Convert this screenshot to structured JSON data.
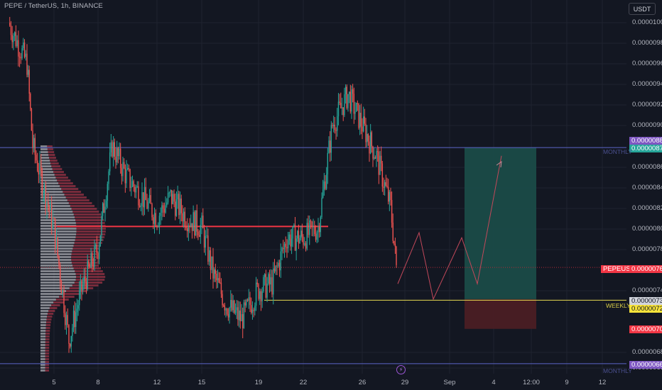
{
  "header": {
    "symbol_title": "PEPE / TetherUS, 1h, BINANCE"
  },
  "toolbar": {
    "currency_label": "USDT"
  },
  "colors": {
    "background": "#131722",
    "up": "#26a69a",
    "down": "#ef5350",
    "red_level": "#f23645",
    "monthly": "#5b65c9",
    "weekly": "#e6d94f",
    "profit": "#1a4b48",
    "loss": "#4a1e24",
    "projection": "#c2485a"
  },
  "price_axis": {
    "ticks": [
      "0.00001000",
      "0.00000980",
      "0.00000960",
      "0.00000940",
      "0.00000920",
      "0.00000900",
      "0.00000860",
      "0.00000840",
      "0.00000820",
      "0.00000800",
      "0.00000780",
      "0.00000740",
      "0.00000680",
      "0.00000660"
    ]
  },
  "time_axis": {
    "ticks": [
      "5",
      "8",
      "12",
      "15",
      "19",
      "22",
      "26",
      "29",
      "Sep",
      "4",
      "12:00",
      "9",
      "12"
    ]
  },
  "badges": {
    "monthly_high": "0.00000880",
    "monthly_level": "0.00000878",
    "current_symbol": "PEPEUSDT",
    "current_price": "0.00000761",
    "weekly_high": "0.00000730",
    "weekly_level": "0.00000729",
    "stop_price": "0.00000701",
    "monthly_low": "0.00000667"
  },
  "line_labels": {
    "monthly_top": "MONTHLY",
    "weekly": "WEEKLY",
    "monthly_bottom": "MONTHLY"
  },
  "chart_data": {
    "type": "candlestick",
    "title": "PEPE / TetherUS, 1h, BINANCE",
    "y_scale": "linear",
    "ylim": [
      6.55e-06,
      1.01e-05
    ],
    "x_axis_ticks": [
      "5",
      "8",
      "12",
      "15",
      "19",
      "22",
      "26",
      "29",
      "Sep",
      "4",
      "12:00",
      "9",
      "12"
    ],
    "grid": true,
    "series_anchors": {
      "description_free_points": true,
      "points": [
        {
          "x": "3",
          "close": 1e-05
        },
        {
          "x": "4",
          "close": 9.6e-06
        },
        {
          "x": "4",
          "close": 8.8e-06
        },
        {
          "x": "5",
          "close": 8e-06
        },
        {
          "x": "6",
          "close": 6.9e-06
        },
        {
          "x": "7",
          "close": 7.4e-06
        },
        {
          "x": "8",
          "close": 7.8e-06
        },
        {
          "x": "9",
          "close": 8.8e-06
        },
        {
          "x": "10",
          "close": 8.5e-06
        },
        {
          "x": "11",
          "close": 8.3e-06
        },
        {
          "x": "12",
          "close": 8.1e-06
        },
        {
          "x": "13",
          "close": 8.3e-06
        },
        {
          "x": "14",
          "close": 8.1e-06
        },
        {
          "x": "15",
          "close": 8e-06
        },
        {
          "x": "16",
          "close": 7.55e-06
        },
        {
          "x": "17",
          "close": 7.25e-06
        },
        {
          "x": "18",
          "close": 7.1e-06
        },
        {
          "x": "19",
          "close": 7.4e-06
        },
        {
          "x": "20",
          "close": 7.45e-06
        },
        {
          "x": "21",
          "close": 7.9e-06
        },
        {
          "x": "22",
          "close": 7.9e-06
        },
        {
          "x": "23",
          "close": 8e-06
        },
        {
          "x": "24",
          "close": 9e-06
        },
        {
          "x": "25",
          "close": 9.3e-06
        },
        {
          "x": "26",
          "close": 9e-06
        },
        {
          "x": "27",
          "close": 8.7e-06
        },
        {
          "x": "28",
          "close": 8.2e-06
        },
        {
          "x": "28",
          "close": 7.61e-06
        }
      ]
    },
    "levels": [
      {
        "name": "MONTHLY",
        "price": 8.78e-06
      },
      {
        "name": "WEEKLY",
        "price": 7.29e-06
      },
      {
        "name": "MONTHLY",
        "price": 6.67e-06
      },
      {
        "price": 8.01e-06
      },
      {
        "name": "PEPEUSDT",
        "price": 7.61e-06
      }
    ],
    "position": {
      "entry": 7.3e-06,
      "target": 8.78e-06,
      "stop": 7.01e-06
    },
    "projection_path": [
      7.45e-06,
      7.95e-06,
      7.3e-06,
      7.9e-06,
      7.45e-06,
      8.7e-06
    ]
  }
}
